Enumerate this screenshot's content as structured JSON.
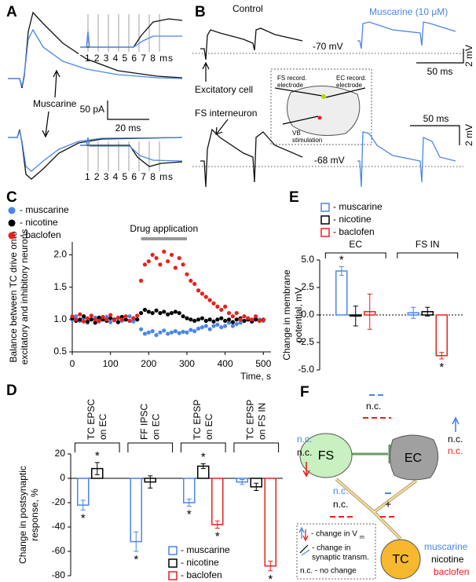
{
  "panel_a": {
    "letter": "A",
    "annotation": "Muscarine",
    "inset_axis_top": "1 2 3 4 5 6 7 8 ms",
    "inset_axis_bottom": "1 2 3 4 5 6 7 8 ms",
    "scale_y": "50 pA",
    "scale_x": "20 ms"
  },
  "panel_b": {
    "letter": "B",
    "control": "Control",
    "muscarine": "Muscarine (10 μM)",
    "vm_top": "-70 mV",
    "vm_bottom": "-68 mV",
    "scale_top_y": "2 mV",
    "scale_top_x": "50 ms",
    "scale_bottom_x": "50 ms",
    "scale_bottom_y": "2 mV",
    "label_ec": "Excitatory cell",
    "label_fs": "FS interneuron",
    "fs_electrode": [
      "FS record.",
      "electrode"
    ],
    "ec_electrode": [
      "EC record.",
      "electrode"
    ],
    "stimulation": [
      "VB",
      "stimulation"
    ]
  },
  "panel_f": {
    "letter": "F",
    "nodes": {
      "fs": "FS",
      "ec": "EC",
      "tc": "TC"
    },
    "fs_left": [
      "n.c.",
      "n.c."
    ],
    "ec_top": "n.c.",
    "ec_right": [
      "n.c.",
      "n.c."
    ],
    "fs_ec": [
      "n.c.",
      "n.c."
    ],
    "tc_ec": "+",
    "legend": {
      "vm": "- change in V",
      "vm_sub": "m",
      "syn": [
        "- change in",
        "synaptic transm."
      ],
      "nc": "n.c. - no change"
    },
    "drugs": [
      "muscarine",
      "nicotine",
      "baclofen"
    ]
  },
  "chart_data": [
    {
      "type": "scatter",
      "label": "C",
      "xlabel": "Time, s",
      "ylabel": [
        "Balance between TC drive onto",
        "excitatory and inhibitory neurons"
      ],
      "annotation": "Drug application",
      "drug_span": [
        180,
        300
      ],
      "xlim": [
        0,
        520
      ],
      "xticks": [
        0,
        100,
        200,
        300,
        400,
        500
      ],
      "ylim": [
        0.5,
        2.2
      ],
      "yticks": [
        {
          "value": 0.5,
          "label": "0.5"
        },
        {
          "value": 1,
          "label": "1.0"
        },
        {
          "value": 1.5,
          "label": "1.5"
        },
        {
          "value": 2,
          "label": "2.0"
        }
      ],
      "legend": "upper left",
      "x": [
        0,
        10,
        20,
        30,
        40,
        50,
        60,
        70,
        80,
        90,
        100,
        110,
        120,
        130,
        140,
        150,
        160,
        170,
        180,
        190,
        200,
        210,
        220,
        230,
        240,
        250,
        260,
        270,
        280,
        290,
        300,
        310,
        320,
        330,
        340,
        350,
        360,
        370,
        380,
        390,
        400,
        410,
        420,
        430,
        440,
        450,
        460,
        470,
        480,
        490,
        500
      ],
      "series": [
        {
          "name": "- muscarine",
          "color": "#4a86e8",
          "values": [
            1.0,
            1.05,
            0.98,
            1.02,
            0.95,
            1.0,
            1.03,
            0.97,
            1.0,
            1.04,
            0.96,
            1.0,
            1.02,
            0.98,
            1.0,
            1.05,
            0.97,
            1.0,
            0.85,
            0.78,
            0.8,
            0.82,
            0.76,
            0.8,
            0.83,
            0.78,
            0.8,
            0.82,
            0.79,
            0.81,
            0.8,
            0.84,
            0.82,
            0.86,
            0.88,
            0.9,
            0.85,
            0.9,
            0.92,
            0.88,
            0.9,
            0.95,
            0.9,
            0.93,
            0.95,
            0.98,
            1.0,
            0.97,
            1.02,
            1.0,
            0.98
          ]
        },
        {
          "name": "- nicotine",
          "color": "#000000",
          "values": [
            1.02,
            0.98,
            1.0,
            1.05,
            0.97,
            1.0,
            0.95,
            1.03,
            1.0,
            0.98,
            1.02,
            1.0,
            0.96,
            1.04,
            1.0,
            0.98,
            1.02,
            1.0,
            1.1,
            1.15,
            1.12,
            1.1,
            1.14,
            1.1,
            1.12,
            1.08,
            1.1,
            1.12,
            1.1,
            1.05,
            1.02,
            1.0,
            0.98,
            1.0,
            1.02,
            0.98,
            1.0,
            0.97,
            1.0,
            1.02,
            0.98,
            1.0,
            0.96,
            1.0,
            1.02,
            0.98,
            1.0,
            0.97,
            1.0,
            0.98,
            1.0
          ]
        },
        {
          "name": "- baclofen",
          "color": "#e8201c",
          "values": [
            1.05,
            1.0,
            1.08,
            0.97,
            1.02,
            1.06,
            1.0,
            0.98,
            1.04,
            1.0,
            1.07,
            0.99,
            1.03,
            1.0,
            1.05,
            0.98,
            1.02,
            1.06,
            1.6,
            1.85,
            1.9,
            2.0,
            1.95,
            1.85,
            2.05,
            1.9,
            2.0,
            1.8,
            1.95,
            1.85,
            1.7,
            1.6,
            1.55,
            1.45,
            1.4,
            1.35,
            1.3,
            1.25,
            1.2,
            1.15,
            1.2,
            1.1,
            1.05,
            1.1,
            1.0,
            1.05,
            1.02,
            1.0,
            1.05,
            0.98,
            1.0
          ]
        }
      ]
    },
    {
      "type": "bar",
      "label": "D",
      "ylabel": [
        "Change in postsynaptic",
        "response, %"
      ],
      "ylim": [
        -80,
        20
      ],
      "yticks": [
        20,
        0,
        -20,
        -40,
        -60,
        -80
      ],
      "legend": "lower right",
      "categories": [
        [
          "TC EPSC",
          "on EC"
        ],
        [
          "FF IPSC",
          "on EC"
        ],
        [
          "TC EPSP",
          "on EC"
        ],
        [
          "TC EPSP",
          "on FS IN"
        ]
      ],
      "series": [
        {
          "name": "- muscarine",
          "color": "#4a86e8",
          "values": [
            -22,
            -52,
            -20,
            -3
          ],
          "errors": [
            4,
            8,
            3,
            2
          ],
          "significance": [
            "*",
            "*",
            "*",
            null
          ]
        },
        {
          "name": "- nicotine",
          "color": "#000000",
          "values": [
            8,
            -3,
            10,
            -7
          ],
          "errors": [
            5,
            5,
            2,
            3
          ],
          "significance": [
            "*",
            null,
            "*",
            null
          ]
        },
        {
          "name": "- baclofen",
          "color": "#e8201c",
          "values": [
            null,
            null,
            -38,
            -72
          ],
          "errors": [
            null,
            null,
            3,
            4
          ],
          "significance": [
            null,
            null,
            "*",
            "*"
          ]
        }
      ]
    },
    {
      "type": "bar",
      "label": "E",
      "ylabel": [
        "Change in membrane",
        "potential, mV"
      ],
      "ylim": [
        -5,
        5
      ],
      "legend": "upper left",
      "yticks": [
        {
          "value": -5,
          "label": "-5.0"
        },
        {
          "value": -2.5,
          "label": "-2.5"
        },
        {
          "value": 0,
          "label": "0.0"
        },
        {
          "value": 2.5,
          "label": "2.5"
        },
        {
          "value": 5,
          "label": "5.0"
        }
      ],
      "categories": [
        [
          "EC"
        ],
        [
          "FS IN"
        ]
      ],
      "series": [
        {
          "name": "- muscarine",
          "color": "#4a86e8",
          "values": [
            4.0,
            0.2
          ],
          "errors": [
            0.4,
            0.5
          ],
          "significance": [
            "*",
            null
          ]
        },
        {
          "name": "- nicotine",
          "color": "#000000",
          "values": [
            -0.1,
            0.3
          ],
          "errors": [
            0.9,
            0.4
          ],
          "significance": [
            null,
            null
          ]
        },
        {
          "name": "- baclofen",
          "color": "#e8201c",
          "values": [
            0.3,
            -3.7
          ],
          "errors": [
            1.6,
            0.3
          ],
          "significance": [
            null,
            "*"
          ]
        }
      ]
    }
  ]
}
